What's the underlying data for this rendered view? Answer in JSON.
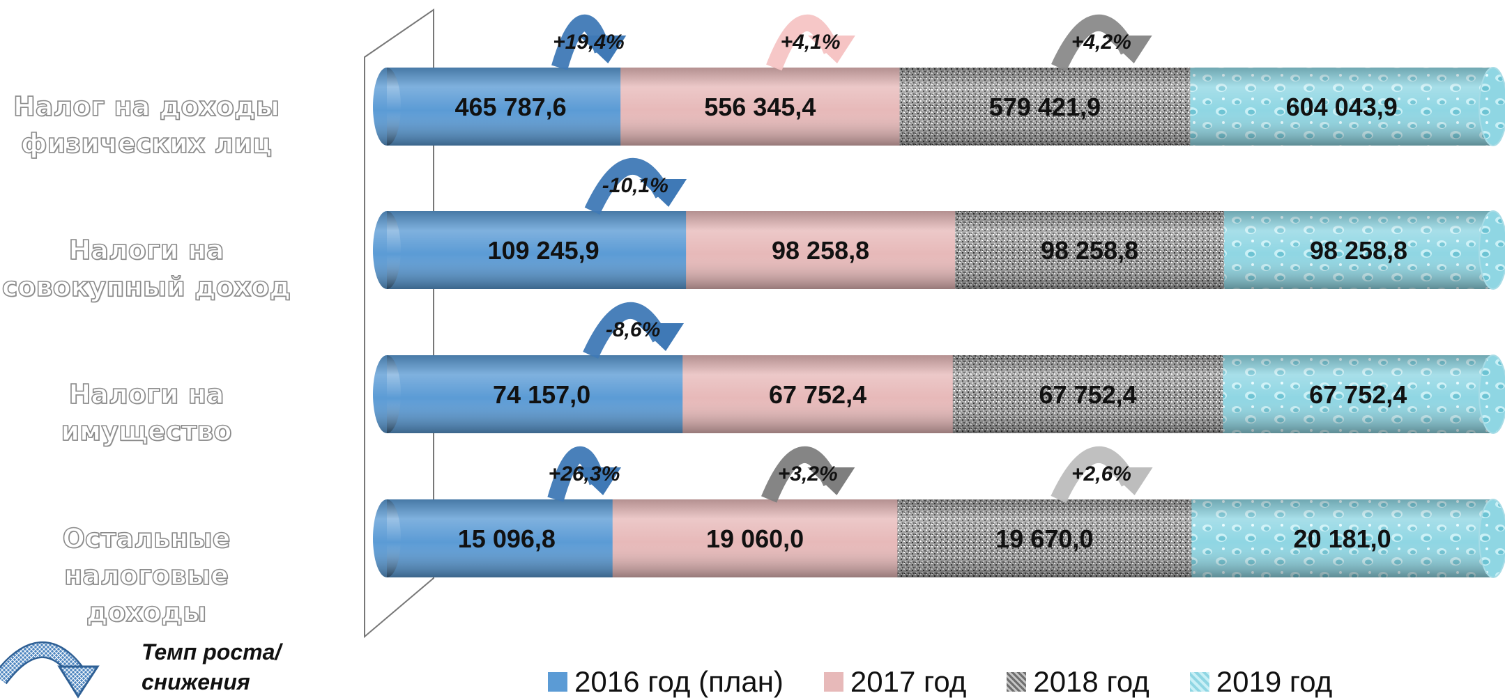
{
  "chart_data": {
    "type": "bar",
    "orientation": "horizontal",
    "stacked": true,
    "categories": [
      "Налог на доходы физических лиц",
      "Налоги на совокупный доход",
      "Налоги на имущество",
      "Остальные налоговые доходы"
    ],
    "series": [
      {
        "name": "2016 год (план)",
        "color": "#5b9bd5"
      },
      {
        "name": "2017 год",
        "color": "#e7b9b9"
      },
      {
        "name": "2018 год",
        "color": "#8e8e8e"
      },
      {
        "name": "2019 год",
        "color": "#8fd6e3"
      }
    ],
    "values": [
      [
        "465 787,6",
        "556 345,4",
        "579 421,9",
        "604 043,9"
      ],
      [
        "109 245,9",
        "98 258,8",
        "98 258,8",
        "98 258,8"
      ],
      [
        "74 157,0",
        "67 752,4",
        "67 752,4",
        "67 752,4"
      ],
      [
        "15 096,8",
        "19 060,0",
        "19 670,0",
        "20 181,0"
      ]
    ],
    "growth": [
      [
        {
          "label": "+19,4%",
          "color": "#3f79b6"
        },
        {
          "label": "+4,1%",
          "color": "#f6c4c4"
        },
        {
          "label": "+4,2%",
          "color": "#8a8a8a"
        }
      ],
      [
        {
          "label": "-10,1%",
          "color": "#3f79b6"
        }
      ],
      [
        {
          "label": "-8,6%",
          "color": "#3f79b6"
        }
      ],
      [
        {
          "label": "+26,3%",
          "color": "#3f79b6"
        },
        {
          "label": "+3,2%",
          "color": "#7e7e7e"
        },
        {
          "label": "+2,6%",
          "color": "#bdbdbd"
        }
      ]
    ],
    "legend_position": "bottom",
    "key": {
      "label": "Темп роста/снижения",
      "icon": "curved-arrow-icon"
    }
  }
}
